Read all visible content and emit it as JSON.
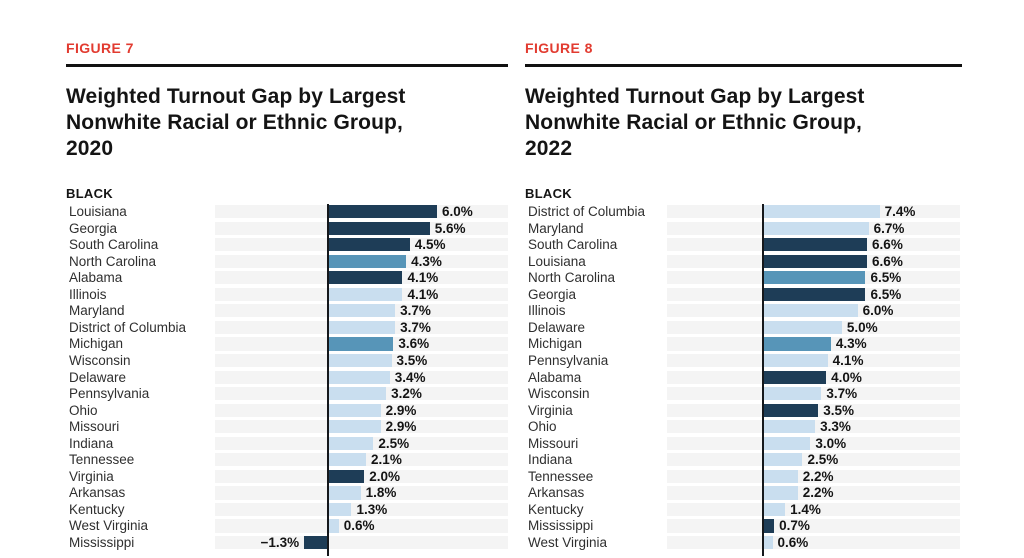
{
  "colors": {
    "accent_red": "#e23b30",
    "bar_dark": "#1e3d57",
    "bar_medium": "#5795b8",
    "bar_light": "#c9deef",
    "row_track": "#f4f4f4",
    "axis_line": "#15181c",
    "title_text": "#141414",
    "label_text": "#2f2f2f"
  },
  "chart_data": [
    {
      "type": "bar",
      "orientation": "horizontal",
      "figure_label": "FIGURE 7",
      "title": "Weighted Turnout Gap by Largest Nonwhite Racial or Ethnic Group, 2020",
      "title_lines": [
        "Weighted Turnout Gap by Largest",
        "Nonwhite Racial or Ethnic Group,",
        "2020"
      ],
      "group_heading": "BLACK",
      "xlim": [
        -6.2,
        9.9
      ],
      "grid": false,
      "legend": "none",
      "value_suffix": "%",
      "categories": [
        "Louisiana",
        "Georgia",
        "South Carolina",
        "North Carolina",
        "Alabama",
        "Illinois",
        "Maryland",
        "District of Columbia",
        "Michigan",
        "Wisconsin",
        "Delaware",
        "Pennsylvania",
        "Ohio",
        "Missouri",
        "Indiana",
        "Tennessee",
        "Virginia",
        "Arkansas",
        "Kentucky",
        "West Virginia",
        "Mississippi"
      ],
      "values": [
        6.0,
        5.6,
        4.5,
        4.3,
        4.1,
        4.1,
        3.7,
        3.7,
        3.6,
        3.5,
        3.4,
        3.2,
        2.9,
        2.9,
        2.5,
        2.1,
        2.0,
        1.8,
        1.3,
        0.6,
        -1.3
      ],
      "value_labels": [
        "6.0%",
        "5.6%",
        "4.5%",
        "4.3%",
        "4.1%",
        "4.1%",
        "3.7%",
        "3.7%",
        "3.6%",
        "3.5%",
        "3.4%",
        "3.2%",
        "2.9%",
        "2.9%",
        "2.5%",
        "2.1%",
        "2.0%",
        "1.8%",
        "1.3%",
        "0.6%",
        "−1.3%"
      ],
      "bar_color_classes": [
        "dark",
        "dark",
        "dark",
        "medium",
        "dark",
        "light",
        "light",
        "light",
        "medium",
        "light",
        "light",
        "light",
        "light",
        "light",
        "light",
        "light",
        "dark",
        "light",
        "light",
        "light",
        "dark"
      ]
    },
    {
      "type": "bar",
      "orientation": "horizontal",
      "figure_label": "FIGURE 8",
      "title": "Weighted Turnout Gap by Largest Nonwhite Racial or Ethnic Group, 2022",
      "title_lines": [
        "Weighted Turnout Gap by Largest",
        "Nonwhite Racial or Ethnic Group,",
        "2022"
      ],
      "group_heading": "BLACK",
      "xlim": [
        -6.1,
        12.5
      ],
      "grid": false,
      "legend": "none",
      "value_suffix": "%",
      "categories": [
        "District of Columbia",
        "Maryland",
        "South Carolina",
        "Louisiana",
        "North Carolina",
        "Georgia",
        "Illinois",
        "Delaware",
        "Michigan",
        "Pennsylvania",
        "Alabama",
        "Wisconsin",
        "Virginia",
        "Ohio",
        "Missouri",
        "Indiana",
        "Tennessee",
        "Arkansas",
        "Kentucky",
        "Mississippi",
        "West Virginia"
      ],
      "values": [
        7.4,
        6.7,
        6.6,
        6.6,
        6.5,
        6.5,
        6.0,
        5.0,
        4.3,
        4.1,
        4.0,
        3.7,
        3.5,
        3.3,
        3.0,
        2.5,
        2.2,
        2.2,
        1.4,
        0.7,
        0.6
      ],
      "value_labels": [
        "7.4%",
        "6.7%",
        "6.6%",
        "6.6%",
        "6.5%",
        "6.5%",
        "6.0%",
        "5.0%",
        "4.3%",
        "4.1%",
        "4.0%",
        "3.7%",
        "3.5%",
        "3.3%",
        "3.0%",
        "2.5%",
        "2.2%",
        "2.2%",
        "1.4%",
        "0.7%",
        "0.6%"
      ],
      "bar_color_classes": [
        "light",
        "light",
        "dark",
        "dark",
        "medium",
        "dark",
        "light",
        "light",
        "medium",
        "light",
        "dark",
        "light",
        "dark",
        "light",
        "light",
        "light",
        "light",
        "light",
        "light",
        "dark",
        "light"
      ]
    }
  ]
}
